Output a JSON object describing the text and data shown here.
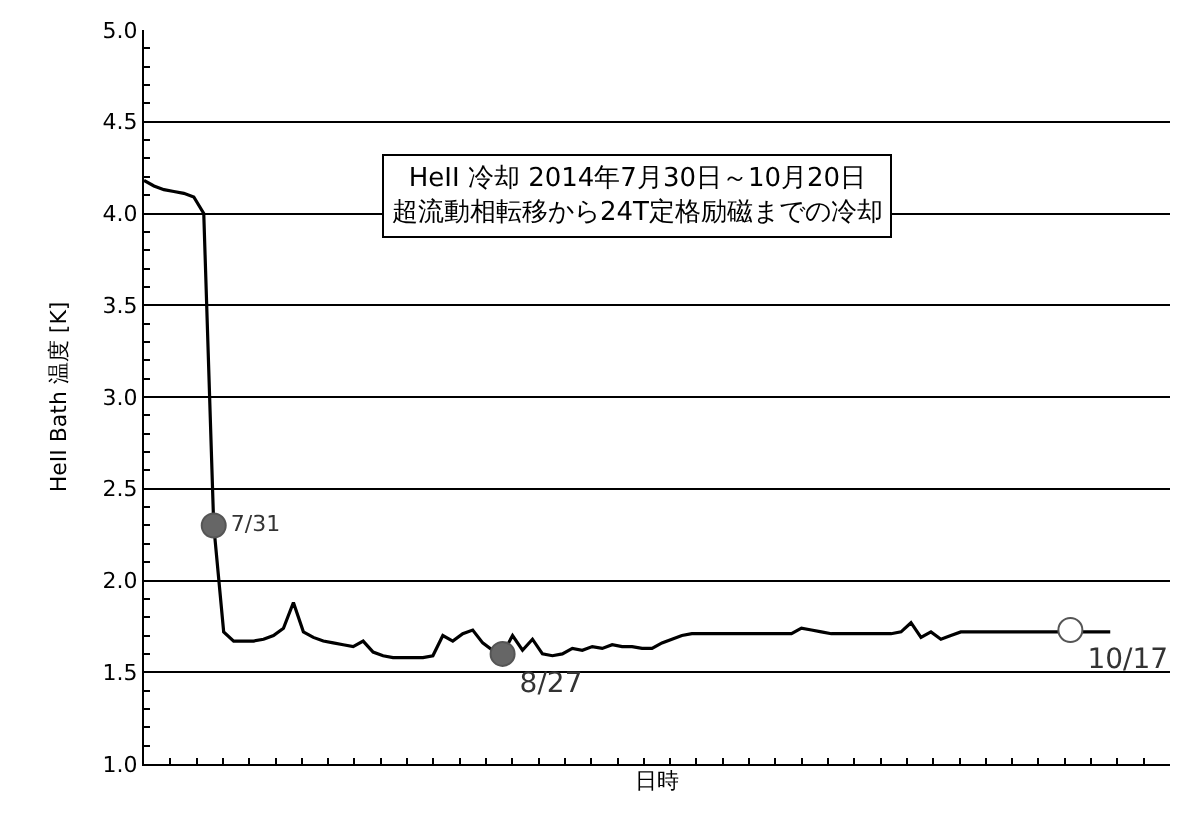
{
  "chart_data": {
    "type": "line",
    "xlabel": "日時",
    "ylabel": "HeII Bath 温度 [K]",
    "categories": [
      null,
      null,
      null,
      null,
      null,
      null,
      null,
      null,
      null,
      null,
      null,
      null,
      null,
      null,
      null,
      null,
      null,
      null,
      null,
      null,
      null,
      null,
      null,
      null,
      null,
      null,
      null,
      null,
      null,
      null,
      null,
      null,
      null,
      null,
      null,
      null,
      null,
      null,
      null,
      null,
      null,
      null,
      null,
      null,
      null,
      null,
      null,
      null,
      null,
      null,
      null,
      null,
      null,
      null,
      null,
      null,
      null,
      null,
      null,
      null,
      null,
      null,
      null,
      null,
      null,
      null,
      null,
      null,
      null,
      null,
      null,
      null,
      null,
      null,
      null,
      null,
      null,
      null,
      null,
      null,
      null,
      null,
      null,
      null,
      null,
      null,
      null,
      null,
      null,
      null,
      null,
      null,
      null,
      null,
      null,
      null,
      null,
      null,
      null,
      null,
      null,
      null,
      null,
      null
    ],
    "series": [
      {
        "color": "#000000",
        "marker": "none",
        "values": [
          4.18,
          4.15,
          4.13,
          4.12,
          4.11,
          4.09,
          4.0,
          2.3,
          1.72,
          1.67,
          1.67,
          1.67,
          1.68,
          1.7,
          1.74,
          1.88,
          1.72,
          1.69,
          1.67,
          1.66,
          1.65,
          1.64,
          1.67,
          1.61,
          1.59,
          1.58,
          1.58,
          1.58,
          1.58,
          1.59,
          1.7,
          1.67,
          1.71,
          1.73,
          1.66,
          1.62,
          1.6,
          1.7,
          1.62,
          1.68,
          1.6,
          1.59,
          1.6,
          1.63,
          1.62,
          1.64,
          1.63,
          1.65,
          1.64,
          1.64,
          1.63,
          1.63,
          1.66,
          1.68,
          1.7,
          1.71,
          1.71,
          1.71,
          1.71,
          1.71,
          1.71,
          1.71,
          1.71,
          1.71,
          1.71,
          1.71,
          1.74,
          1.73,
          1.72,
          1.71,
          1.71,
          1.71,
          1.71,
          1.71,
          1.71,
          1.71,
          1.72,
          1.77,
          1.69,
          1.72,
          1.68,
          1.7,
          1.72,
          1.72,
          1.72,
          1.72,
          1.72,
          1.72,
          1.72,
          1.72,
          1.72,
          1.72,
          1.72,
          1.72,
          1.72,
          1.72,
          1.72,
          1.72,
          null,
          null,
          null,
          null,
          null,
          null
        ]
      },
      {
        "type": "scatter",
        "color": "#666666",
        "marker": "circle",
        "values": [
          null,
          null,
          null,
          null,
          null,
          null,
          null,
          2.3,
          null,
          null,
          null,
          null,
          null,
          null,
          null,
          null,
          null,
          null,
          null,
          null,
          null,
          null,
          null,
          null,
          null,
          null,
          null,
          null,
          null,
          null,
          null,
          null,
          null,
          null,
          null,
          null,
          1.6,
          null,
          null,
          null,
          null,
          null,
          null,
          null,
          null,
          null,
          null,
          null,
          null,
          null,
          null,
          null,
          null,
          null,
          null,
          null,
          null,
          null,
          null,
          null,
          null,
          null,
          null,
          null,
          null,
          null,
          null,
          null,
          null,
          null,
          null,
          null,
          null,
          null,
          null,
          null,
          null,
          null,
          null,
          null,
          null,
          null,
          null,
          null,
          null,
          null,
          null,
          null,
          null,
          null,
          null,
          null,
          null,
          null,
          null,
          null,
          null,
          null,
          null,
          null,
          null,
          null,
          null,
          null
        ],
        "value_labels": [
          null,
          null,
          null,
          null,
          null,
          null,
          null,
          "7/31",
          null,
          null,
          null,
          null,
          null,
          null,
          null,
          null,
          null,
          null,
          null,
          null,
          null,
          null,
          null,
          null,
          null,
          null,
          null,
          null,
          null,
          null,
          null,
          null,
          null,
          null,
          null,
          null,
          "8/27",
          null,
          null,
          null,
          null,
          null,
          null,
          null,
          null,
          null,
          null,
          null,
          null,
          null,
          null,
          null,
          null,
          null,
          null,
          null,
          null,
          null,
          null,
          null,
          null,
          null,
          null,
          null,
          null,
          null,
          null,
          null,
          null,
          null,
          null,
          null,
          null,
          null,
          null,
          null,
          null,
          null,
          null,
          null,
          null,
          null,
          null,
          null,
          null,
          null,
          null,
          null,
          null,
          null,
          null,
          null,
          null,
          null,
          null,
          null,
          null,
          null,
          null,
          null,
          null,
          null,
          null,
          null
        ]
      },
      {
        "type": "scatter",
        "color": "#ffffff",
        "marker": "circle",
        "values": [
          null,
          null,
          null,
          null,
          null,
          null,
          null,
          null,
          null,
          null,
          null,
          null,
          null,
          null,
          null,
          null,
          null,
          null,
          null,
          null,
          null,
          null,
          null,
          null,
          null,
          null,
          null,
          null,
          null,
          null,
          null,
          null,
          null,
          null,
          null,
          null,
          null,
          null,
          null,
          null,
          null,
          null,
          null,
          null,
          null,
          null,
          null,
          null,
          null,
          null,
          null,
          null,
          null,
          null,
          null,
          null,
          null,
          null,
          null,
          null,
          null,
          null,
          null,
          null,
          null,
          null,
          null,
          null,
          null,
          null,
          null,
          null,
          null,
          null,
          null,
          null,
          null,
          null,
          null,
          null,
          null,
          null,
          null,
          null,
          null,
          null,
          null,
          null,
          null,
          null,
          null,
          null,
          null,
          1.73,
          null,
          null,
          null,
          null,
          null,
          null,
          null,
          null,
          null,
          null
        ],
        "value_labels": [
          null,
          null,
          null,
          null,
          null,
          null,
          null,
          null,
          null,
          null,
          null,
          null,
          null,
          null,
          null,
          null,
          null,
          null,
          null,
          null,
          null,
          null,
          null,
          null,
          null,
          null,
          null,
          null,
          null,
          null,
          null,
          null,
          null,
          null,
          null,
          null,
          null,
          null,
          null,
          null,
          null,
          null,
          null,
          null,
          null,
          null,
          null,
          null,
          null,
          null,
          null,
          null,
          null,
          null,
          null,
          null,
          null,
          null,
          null,
          null,
          null,
          null,
          null,
          null,
          null,
          null,
          null,
          null,
          null,
          null,
          null,
          null,
          null,
          null,
          null,
          null,
          null,
          null,
          null,
          null,
          null,
          null,
          null,
          null,
          null,
          null,
          null,
          null,
          null,
          null,
          null,
          null,
          null,
          "10/17",
          null,
          null,
          null,
          null,
          null,
          null,
          null,
          null,
          null,
          null
        ]
      }
    ],
    "annotations": [
      "HeII 冷却 2014年7月30日～10月20日",
      "超流動相転移から24T定格励磁までの冷却"
    ],
    "ylim": [
      1.0,
      5.0
    ],
    "yticks": [
      {
        "value": 1,
        "label": "1.0"
      },
      1.5,
      {
        "value": 2,
        "label": "2.0"
      },
      2.5,
      {
        "value": 3,
        "label": "3.0"
      },
      3.5,
      {
        "value": 4,
        "label": "4.0"
      },
      4.5,
      {
        "value": 5,
        "label": "5.0"
      }
    ],
    "grid": "y",
    "tick_labels": "y"
  }
}
